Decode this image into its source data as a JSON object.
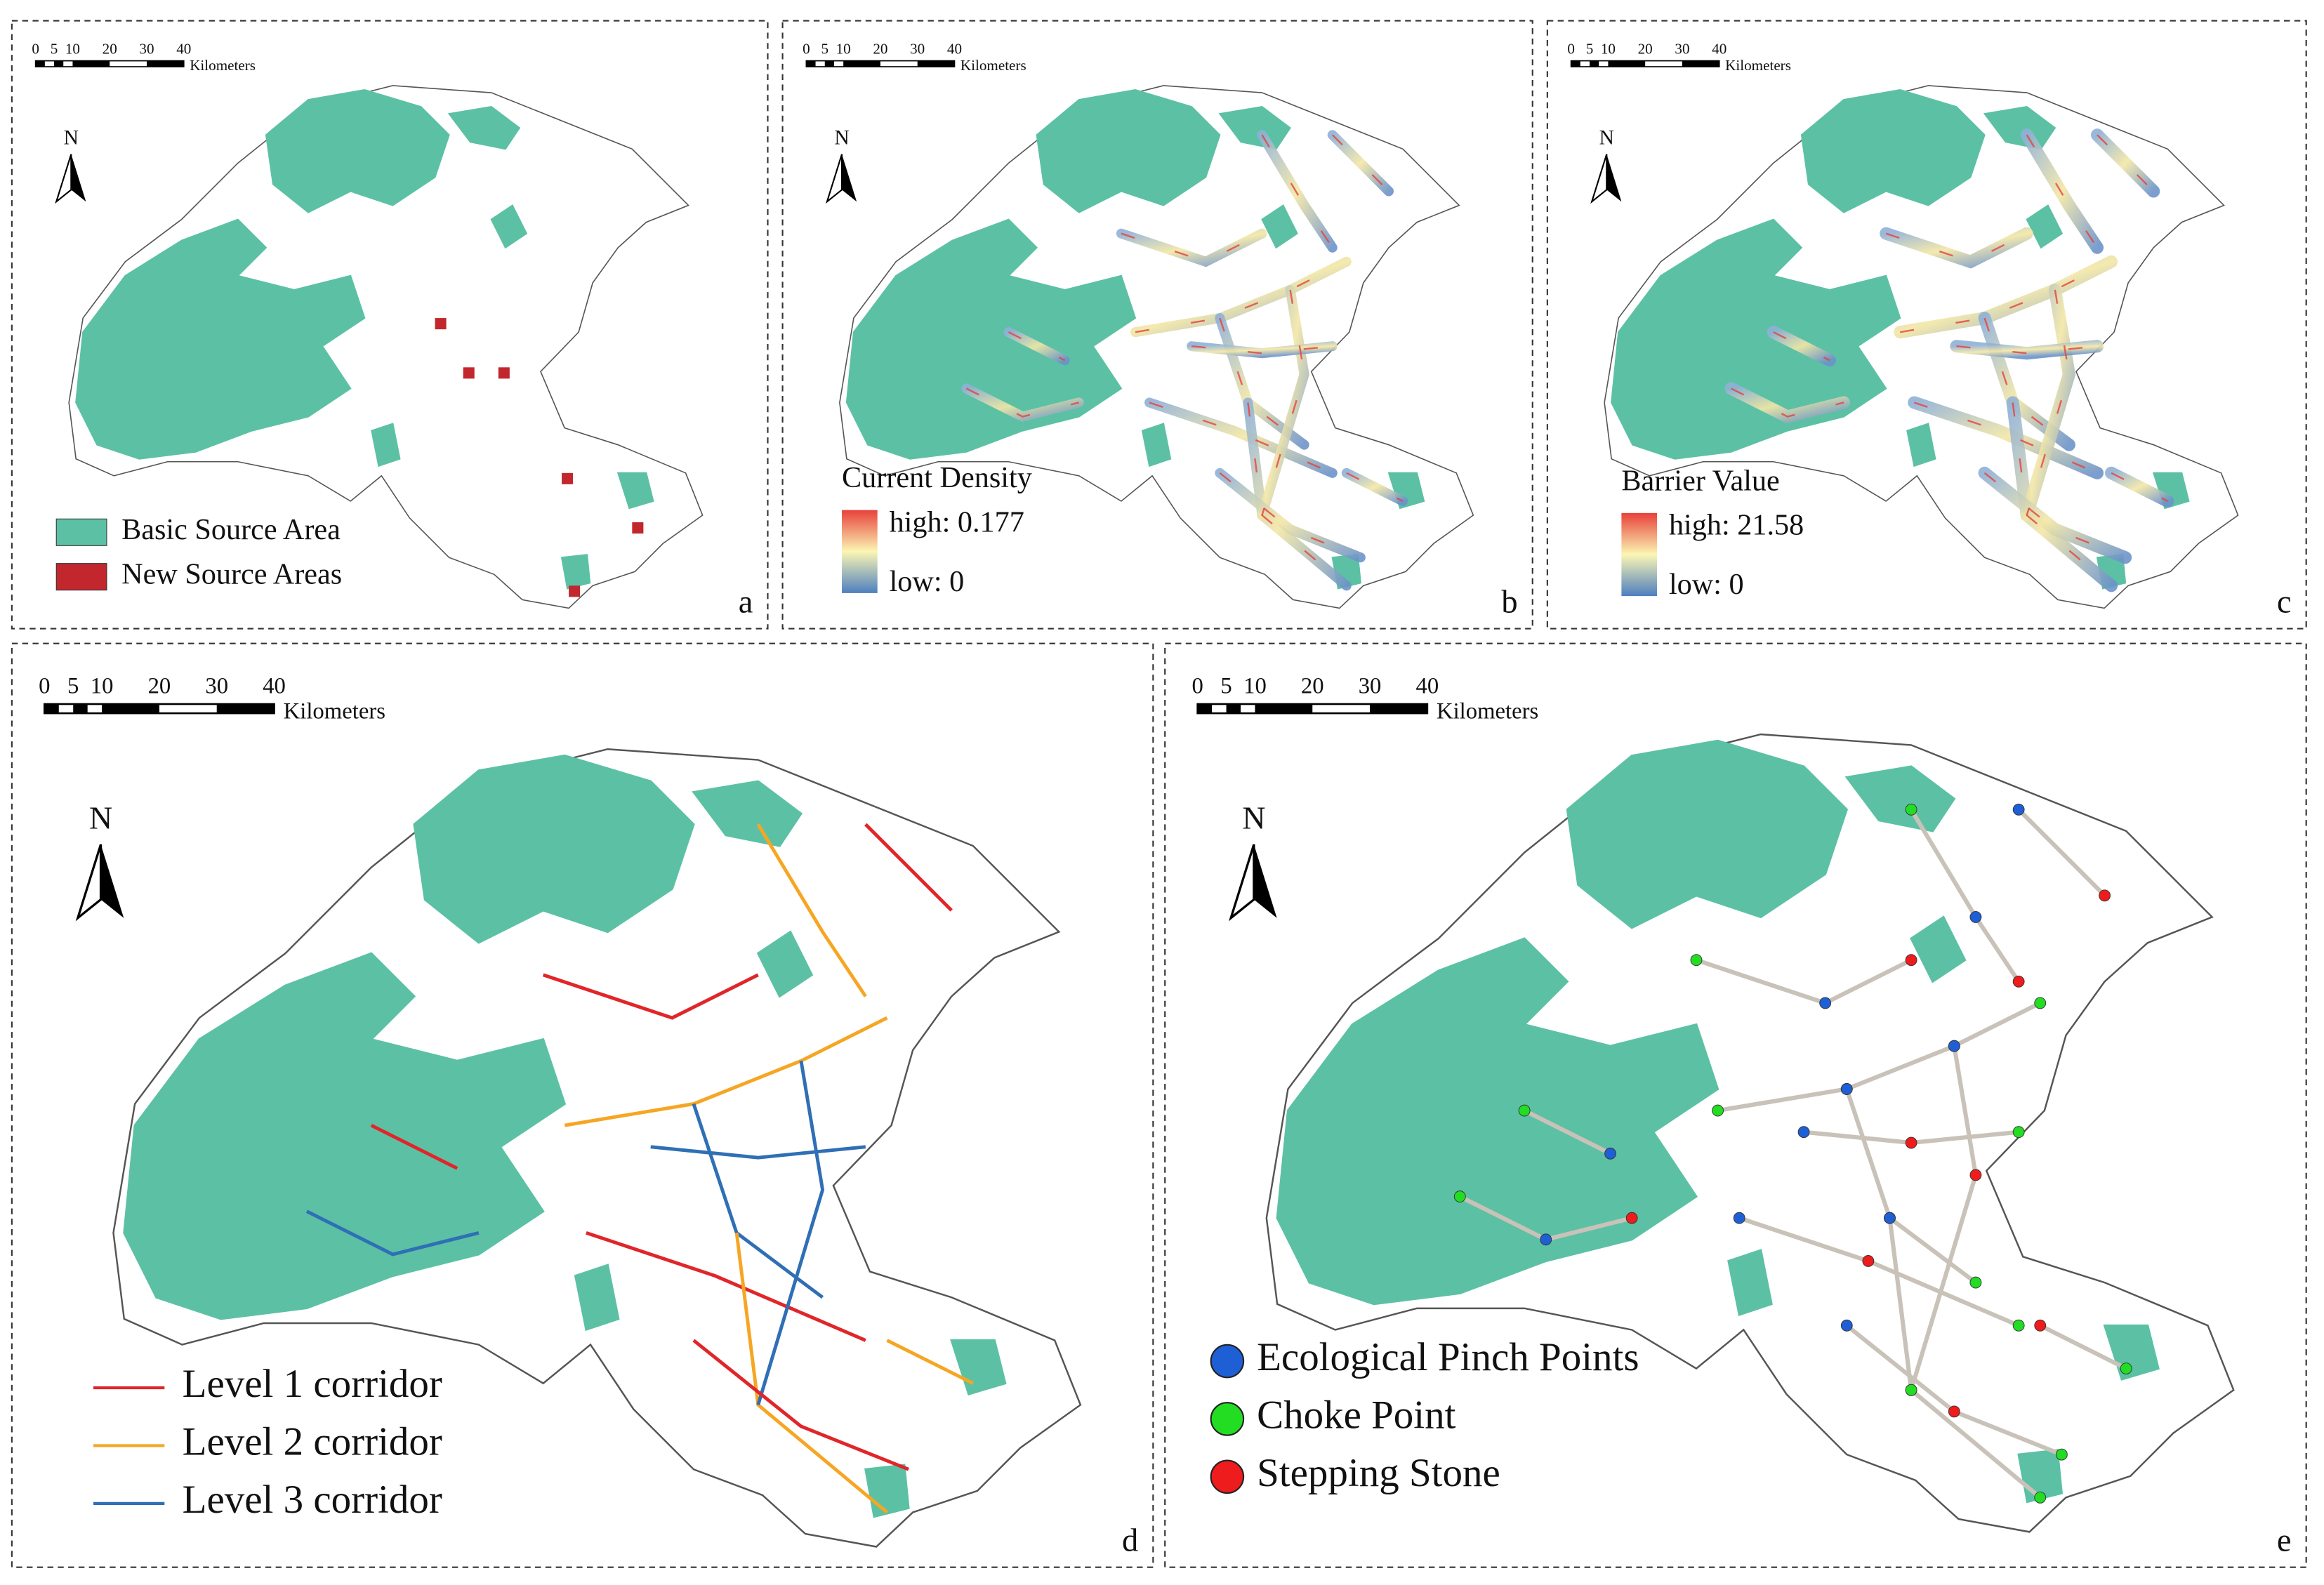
{
  "panels": [
    {
      "letter": "a",
      "scale_bar": {
        "labels": [
          "0",
          "5",
          "10",
          "20",
          "30",
          "40"
        ],
        "unit": "Kilometers"
      },
      "north": "N",
      "legend": {
        "items": [
          {
            "label": "Basic Source Area",
            "color": "#5cc1a4"
          },
          {
            "label": "New Source Areas",
            "color": "#c1272d"
          }
        ]
      }
    },
    {
      "letter": "b",
      "scale_bar": {
        "labels": [
          "0",
          "5",
          "10",
          "20",
          "30",
          "40"
        ],
        "unit": "Kilometers"
      },
      "north": "N",
      "legend": {
        "title": "Current Density",
        "high": "high: 0.177",
        "low": "low:  0"
      }
    },
    {
      "letter": "c",
      "scale_bar": {
        "labels": [
          "0",
          "5",
          "10",
          "20",
          "30",
          "40"
        ],
        "unit": "Kilometers"
      },
      "north": "N",
      "legend": {
        "title": "Barrier Value",
        "high": "high: 21.58",
        "low": "low:  0"
      }
    },
    {
      "letter": "d",
      "scale_bar": {
        "labels": [
          "0",
          "5",
          "10",
          "20",
          "30",
          "40"
        ],
        "unit": "Kilometers"
      },
      "north": "N",
      "legend": {
        "items": [
          {
            "label": "Level 1 corridor",
            "color": "#e0262a"
          },
          {
            "label": "Level 2 corridor",
            "color": "#f6a623"
          },
          {
            "label": "Level 3 corridor",
            "color": "#2f6fb5"
          }
        ]
      }
    },
    {
      "letter": "e",
      "scale_bar": {
        "labels": [
          "0",
          "5",
          "10",
          "20",
          "30",
          "40"
        ],
        "unit": "Kilometers"
      },
      "north": "N",
      "legend": {
        "items": [
          {
            "label": "Ecological Pinch Points",
            "color": "#1f5fd6"
          },
          {
            "label": "Choke Point",
            "color": "#22dd22"
          },
          {
            "label": "Stepping Stone",
            "color": "#ee1c1c"
          }
        ]
      }
    }
  ]
}
